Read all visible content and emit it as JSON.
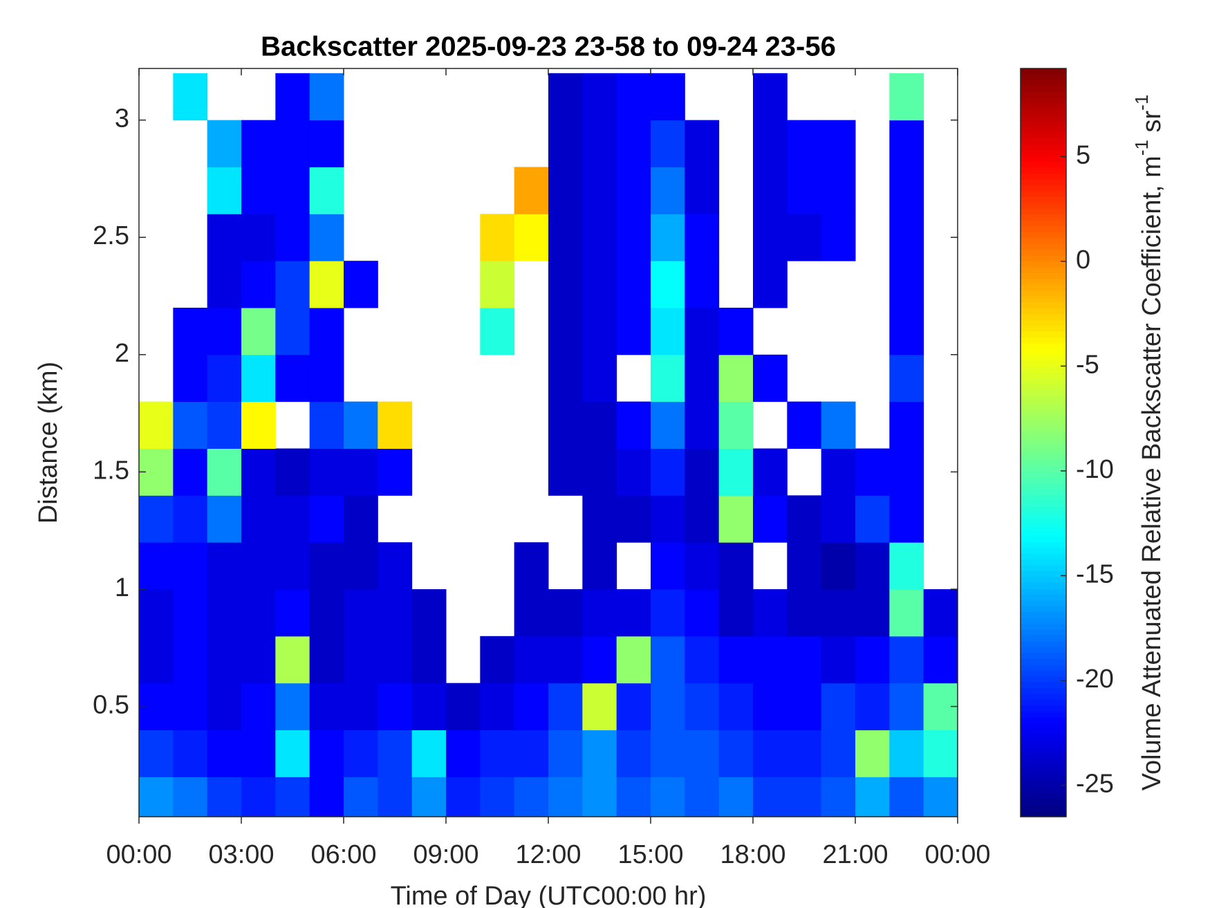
{
  "chart_data": {
    "type": "heatmap",
    "title": "Backscatter 2025-09-23 23-58 to 09-24 23-56",
    "x_label": "Time of Day (UTC00:00 hr)",
    "y_label": "Distance (km)",
    "colorbar_label": [
      "Volume Attenuated Relative Backscatter Coefficient, m",
      "-1",
      " sr",
      "-1"
    ],
    "colormap": "jet",
    "x": [
      0.5,
      1.5,
      2.5,
      3.5,
      4.5,
      5.5,
      6.5,
      7.5,
      8.5,
      9.5,
      10.5,
      11.5,
      12.5,
      13.5,
      14.5,
      15.5,
      16.5,
      17.5,
      18.5,
      19.5,
      20.5,
      21.5,
      22.5,
      23.5
    ],
    "y": [
      0.1,
      0.3,
      0.5,
      0.7,
      0.9,
      1.1,
      1.3,
      1.5,
      1.7,
      1.9,
      2.1,
      2.3,
      2.5,
      2.7,
      2.9,
      3.1
    ],
    "z": [
      [
        -17,
        -18,
        -20,
        -21,
        -20,
        -22,
        -19,
        -20,
        -17,
        -21,
        -20,
        -19,
        -18,
        -17,
        -19,
        -18,
        -19,
        -18,
        -20,
        -20,
        -19,
        -16,
        -19,
        -17
      ],
      [
        -20,
        -21,
        -22,
        -22,
        -14,
        -22,
        -21,
        -20,
        -14,
        -22,
        -21,
        -21,
        -19,
        -17,
        -20,
        -19,
        -19,
        -20,
        -21,
        -21,
        -20,
        -8,
        -15,
        -12
      ],
      [
        -22,
        -22,
        -23,
        -22,
        -18,
        -23,
        -23,
        -22,
        -23,
        -24,
        -23,
        -22,
        -20,
        -6,
        -21,
        -19,
        -20,
        -21,
        -22,
        -22,
        -20,
        -21,
        -19,
        -10
      ],
      [
        -23,
        -22,
        -23,
        -23,
        -7,
        -24,
        -23,
        -23,
        -24,
        null,
        -24,
        -23,
        -23,
        -22,
        -8,
        -19,
        -21,
        -22,
        -22,
        -22,
        -23,
        -22,
        -20,
        -22
      ],
      [
        -23,
        -22,
        -23,
        -23,
        -22,
        -24,
        -23,
        -23,
        -24,
        null,
        null,
        -24,
        -24,
        -23,
        -23,
        -21,
        -22,
        -24,
        -23,
        -24,
        -24,
        -24,
        -10,
        -23
      ],
      [
        -22,
        -22,
        -23,
        -23,
        -23,
        -24,
        -24,
        -23,
        null,
        null,
        null,
        -24,
        null,
        -24,
        null,
        -22,
        -23,
        -24,
        null,
        -24,
        -25,
        -24,
        -12,
        null
      ],
      [
        -20,
        -21,
        -18,
        -23,
        -23,
        -22,
        -24,
        null,
        null,
        null,
        null,
        null,
        null,
        -24,
        -24,
        -23,
        -24,
        -8,
        -22,
        -24,
        -23,
        -20,
        -22,
        null
      ],
      [
        -8,
        -22,
        -10,
        -23,
        -24,
        -23,
        -23,
        -22,
        null,
        null,
        null,
        null,
        -24,
        -24,
        -23,
        -21,
        -24,
        -12,
        -23,
        null,
        -23,
        -22,
        -22,
        null
      ],
      [
        -5,
        -19,
        -20,
        -4,
        null,
        -20,
        -18,
        -3,
        null,
        null,
        null,
        null,
        -24,
        -24,
        -22,
        -18,
        -23,
        -10,
        null,
        -22,
        -18,
        null,
        -22,
        null
      ],
      [
        null,
        -22,
        -21,
        -14,
        -22,
        -22,
        null,
        null,
        null,
        null,
        null,
        null,
        -24,
        -23,
        null,
        -12,
        -23,
        -8,
        -22,
        null,
        null,
        null,
        -20,
        null
      ],
      [
        null,
        -22,
        -22,
        -9,
        -20,
        -22,
        null,
        null,
        null,
        null,
        -12,
        null,
        -24,
        -23,
        -22,
        -14,
        -23,
        -22,
        null,
        null,
        null,
        null,
        -22,
        null
      ],
      [
        null,
        null,
        -23,
        -22,
        -20,
        -5,
        -22,
        null,
        null,
        null,
        -6,
        null,
        -24,
        -23,
        -22,
        -13,
        -22,
        null,
        -23,
        null,
        null,
        null,
        -22,
        null
      ],
      [
        null,
        null,
        -23,
        -23,
        -22,
        -18,
        null,
        null,
        null,
        null,
        -3,
        -4,
        -24,
        -23,
        -22,
        -16,
        -22,
        null,
        -23,
        -23,
        -22,
        null,
        -22,
        null
      ],
      [
        null,
        null,
        -14,
        -22,
        -22,
        -12,
        null,
        null,
        null,
        null,
        null,
        -1,
        -24,
        -23,
        -22,
        -18,
        -23,
        null,
        -23,
        -22,
        -22,
        null,
        -22,
        null
      ],
      [
        null,
        null,
        -16,
        -22,
        -22,
        -22,
        null,
        null,
        null,
        null,
        null,
        null,
        -24,
        -23,
        -22,
        -20,
        -23,
        null,
        -23,
        -22,
        -22,
        null,
        -22,
        null
      ],
      [
        null,
        -14,
        null,
        null,
        -22,
        -18,
        null,
        null,
        null,
        null,
        null,
        null,
        -24,
        -23,
        -22,
        -22,
        null,
        null,
        -23,
        null,
        null,
        null,
        -10,
        null
      ]
    ],
    "xlim": [
      0,
      24
    ],
    "xticks": [
      {
        "value": 0,
        "label": "00:00"
      },
      {
        "value": 3,
        "label": "03:00"
      },
      {
        "value": 6,
        "label": "06:00"
      },
      {
        "value": 9,
        "label": "09:00"
      },
      {
        "value": 12,
        "label": "12:00"
      },
      {
        "value": 15,
        "label": "15:00"
      },
      {
        "value": 18,
        "label": "18:00"
      },
      {
        "value": 21,
        "label": "21:00"
      },
      {
        "value": 24,
        "label": "00:00"
      }
    ],
    "ylim": [
      0.03,
      3.22
    ],
    "yticks": [
      0.5,
      1,
      1.5,
      2,
      2.5,
      3
    ],
    "clim": [
      -26.5,
      9.2
    ],
    "cticks": [
      -25,
      -20,
      -15,
      -10,
      -5,
      0,
      5
    ],
    "grid": false
  }
}
